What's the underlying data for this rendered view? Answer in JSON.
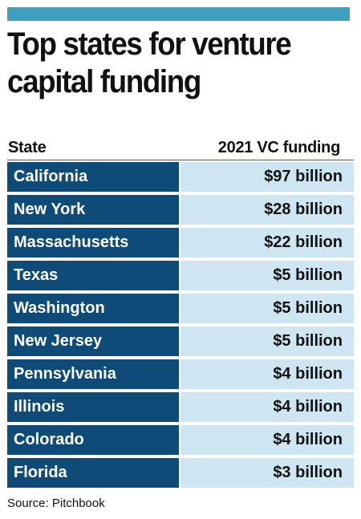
{
  "title": "Top states for venture\ncapital funding",
  "colors": {
    "top_bar": "#3f9fc0",
    "state_cell": "#0f4b78",
    "value_cell": "#cde6f2"
  },
  "source": "Source: Pitchbook",
  "chart_data": {
    "type": "table",
    "columns": [
      "State",
      "2021 VC funding"
    ],
    "rows": [
      [
        "California",
        "$97 billion"
      ],
      [
        "New York",
        "$28 billion"
      ],
      [
        "Massachusetts",
        "$22 billion"
      ],
      [
        "Texas",
        "$5 billion"
      ],
      [
        "Washington",
        "$5 billion"
      ],
      [
        "New Jersey",
        "$5 billion"
      ],
      [
        "Pennsylvania",
        "$4 billion"
      ],
      [
        "Illinois",
        "$4 billion"
      ],
      [
        "Colorado",
        "$4 billion"
      ],
      [
        "Florida",
        "$3 billion"
      ]
    ]
  }
}
